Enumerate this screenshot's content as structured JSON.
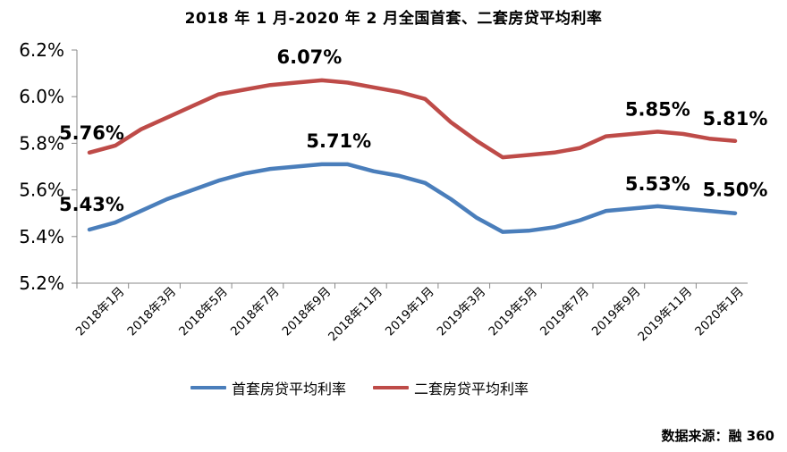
{
  "chart_data": {
    "type": "line",
    "title": "2018 年 1 月-2020 年 2 月全国首套、二套房贷平均利率",
    "xlabel": "",
    "ylabel": "",
    "ylim": [
      5.2,
      6.2
    ],
    "yticks": [
      "5.2%",
      "5.4%",
      "5.6%",
      "5.8%",
      "6.0%",
      "6.2%"
    ],
    "ytick_values": [
      5.2,
      5.4,
      5.6,
      5.8,
      6.0,
      6.2
    ],
    "grid": false,
    "legend_position": "bottom",
    "x": [
      "2018年1月",
      "2018年2月",
      "2018年3月",
      "2018年4月",
      "2018年5月",
      "2018年6月",
      "2018年7月",
      "2018年8月",
      "2018年9月",
      "2018年10月",
      "2018年11月",
      "2018年12月",
      "2019年1月",
      "2019年2月",
      "2019年3月",
      "2019年4月",
      "2019年5月",
      "2019年6月",
      "2019年7月",
      "2019年8月",
      "2019年9月",
      "2019年10月",
      "2019年11月",
      "2019年12月",
      "2020年1月",
      "2020年2月"
    ],
    "xtick_labels": [
      "2018年1月",
      "2018年3月",
      "2018年5月",
      "2018年7月",
      "2018年9月",
      "2018年11月",
      "2019年1月",
      "2019年3月",
      "2019年5月",
      "2019年7月",
      "2019年9月",
      "2019年11月",
      "2020年1月"
    ],
    "series": [
      {
        "name": "首套房贷平均利率",
        "color": "#4a7ebb",
        "values": [
          5.43,
          5.46,
          5.51,
          5.56,
          5.6,
          5.64,
          5.67,
          5.69,
          5.7,
          5.71,
          5.71,
          5.68,
          5.66,
          5.63,
          5.56,
          5.48,
          5.42,
          5.425,
          5.44,
          5.47,
          5.51,
          5.52,
          5.53,
          5.52,
          5.51,
          5.5
        ]
      },
      {
        "name": "二套房贷平均利率",
        "color": "#be4b48",
        "values": [
          5.76,
          5.79,
          5.86,
          5.91,
          5.96,
          6.01,
          6.03,
          6.05,
          6.06,
          6.07,
          6.06,
          6.04,
          6.02,
          5.99,
          5.89,
          5.81,
          5.74,
          5.75,
          5.76,
          5.78,
          5.83,
          5.84,
          5.85,
          5.84,
          5.82,
          5.81
        ]
      }
    ],
    "annotations": [
      {
        "text": "5.76%",
        "series": 1,
        "index": 0
      },
      {
        "text": "6.07%",
        "series": 1,
        "index": 9
      },
      {
        "text": "5.85%",
        "series": 1,
        "index": 22
      },
      {
        "text": "5.81%",
        "series": 1,
        "index": 25
      },
      {
        "text": "5.43%",
        "series": 0,
        "index": 0
      },
      {
        "text": "5.71%",
        "series": 0,
        "index": 10
      },
      {
        "text": "5.53%",
        "series": 0,
        "index": 22
      },
      {
        "text": "5.50%",
        "series": 0,
        "index": 25
      }
    ]
  },
  "source": "数据来源：融 360"
}
